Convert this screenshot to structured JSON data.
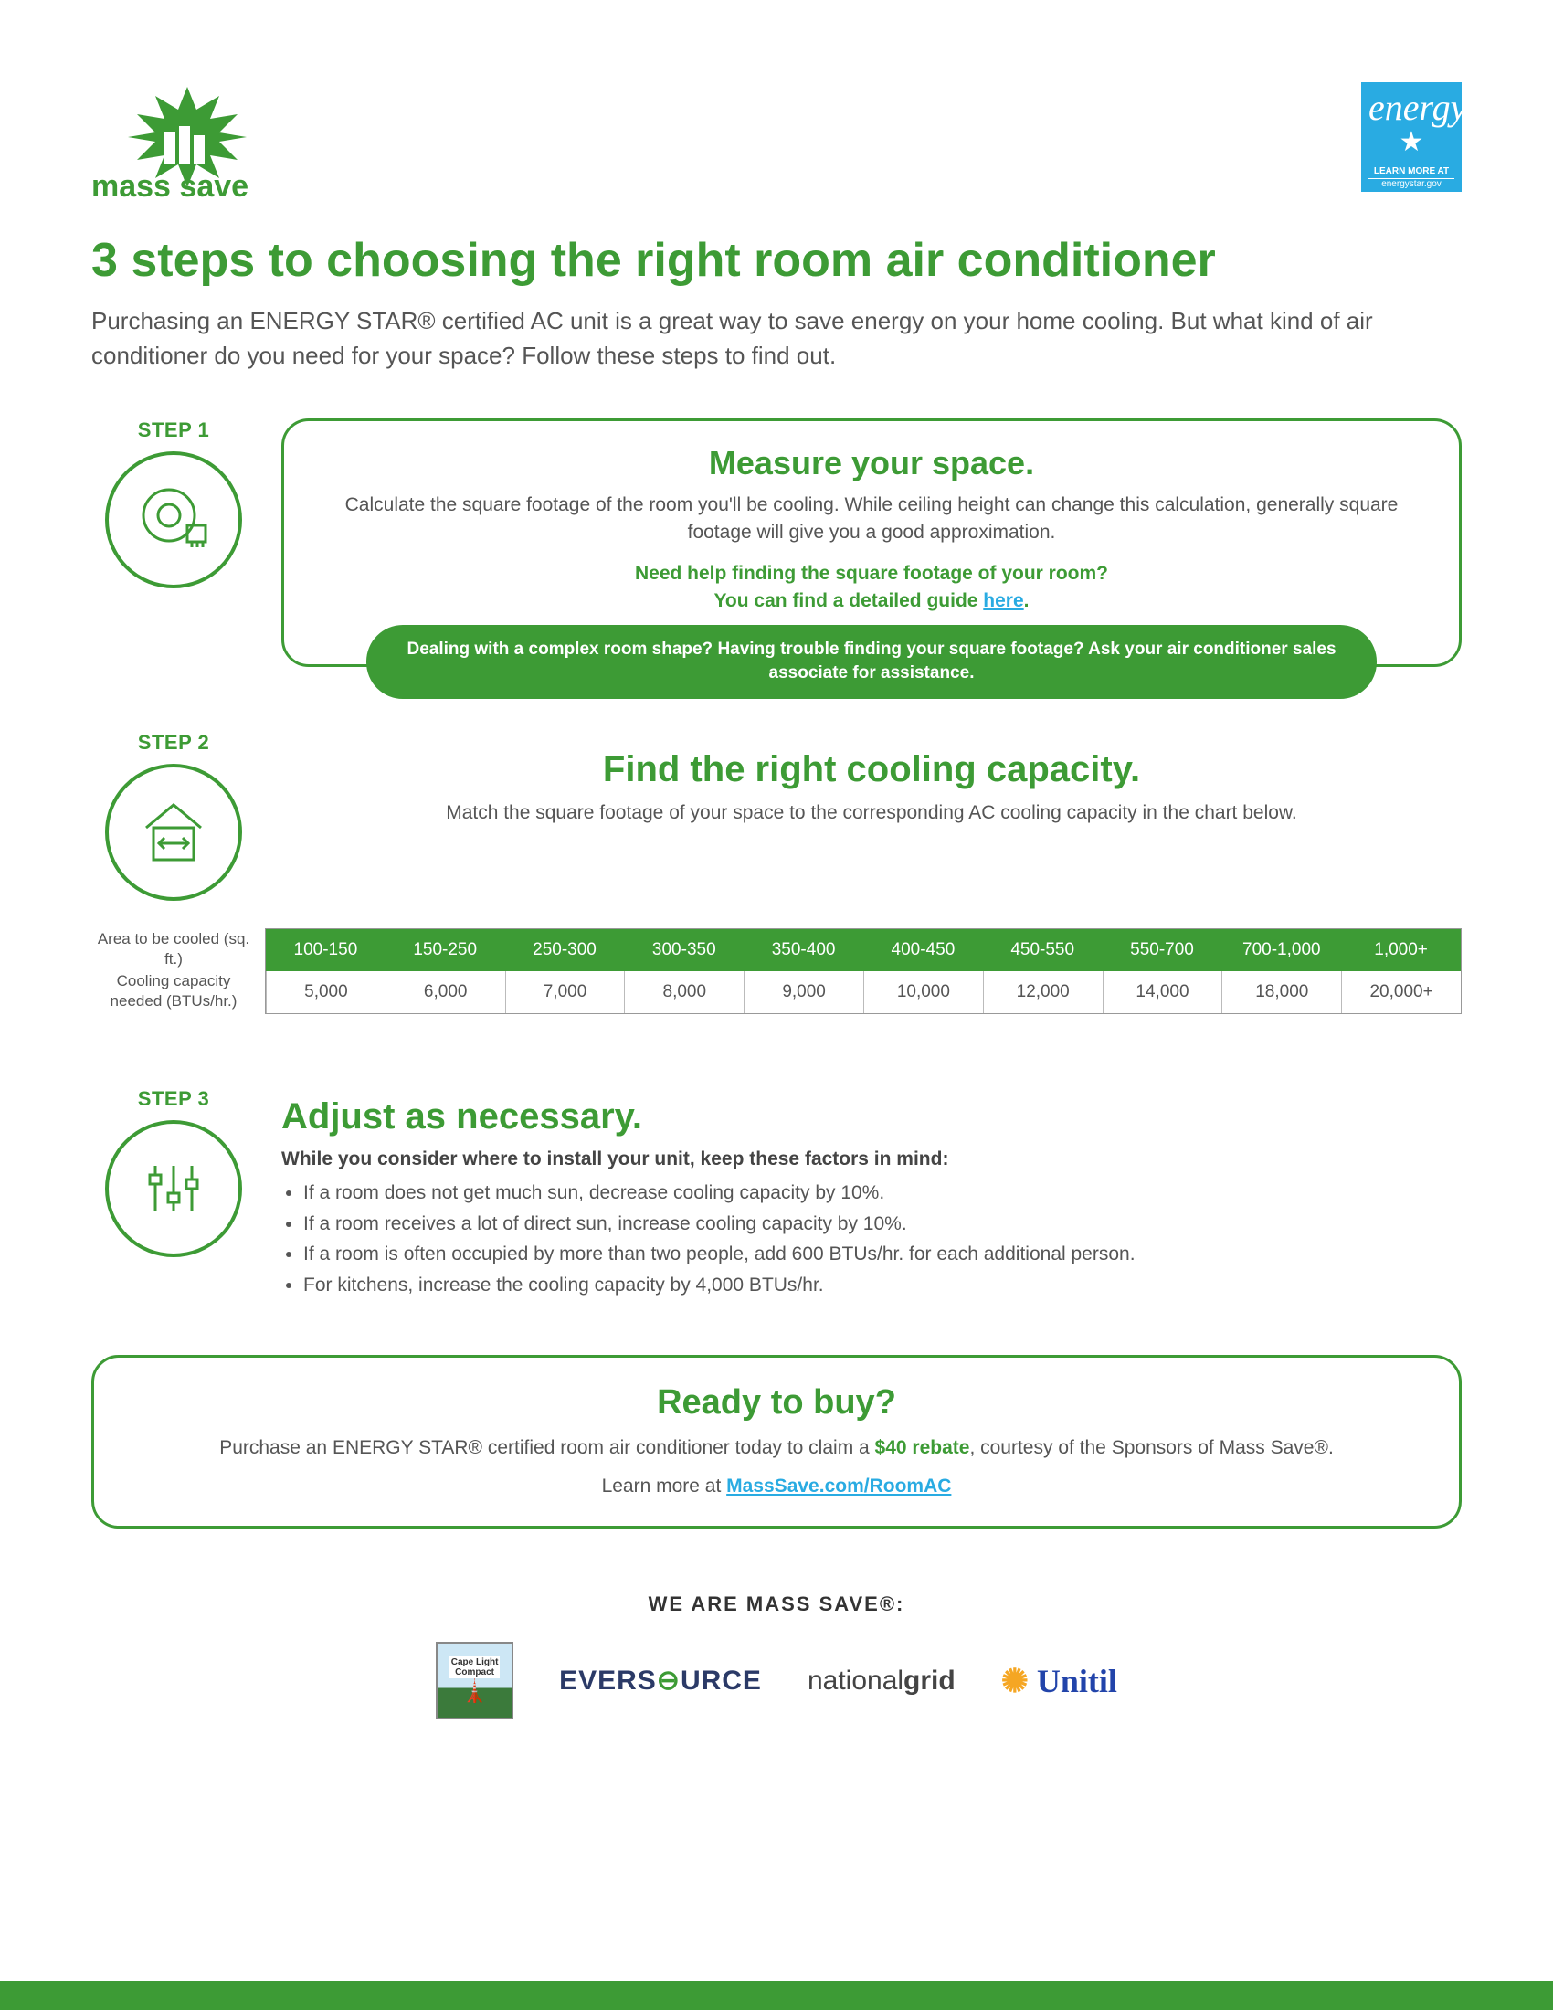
{
  "colors": {
    "accent": "#3d9b35",
    "link": "#29abe2",
    "text": "#555555",
    "bg": "#ffffff"
  },
  "header": {
    "brand": "mass save",
    "energystar_lines": [
      "energy",
      "LEARN MORE AT",
      "energystar.gov"
    ]
  },
  "title": "3 steps to choosing the right room air conditioner",
  "intro": "Purchasing an ENERGY STAR® certified AC unit is a great way to save energy on your home cooling. But what kind of air conditioner do you need for your space? Follow these steps to find out.",
  "step1": {
    "label": "STEP 1",
    "title": "Measure your space.",
    "desc": "Calculate the square footage of the room you'll be cooling. While ceiling height can change this calculation, generally square footage will give you a good approximation.",
    "help1": "Need help finding the square footage of your room?",
    "help2_pre": "You can find a detailed guide ",
    "help2_link": "here",
    "help2_post": ".",
    "pill": "Dealing with a complex room shape? Having trouble finding your square footage? Ask your air conditioner sales associate for assistance."
  },
  "step2": {
    "label": "STEP 2",
    "title": "Find the right cooling capacity.",
    "desc": "Match the square footage of your space to the corresponding AC cooling capacity in the chart below.",
    "row1_label": "Area to be cooled (sq. ft.)",
    "row2_label": "Cooling capacity needed (BTUs/hr.)",
    "table": {
      "type": "table",
      "columns": [
        "100-150",
        "150-250",
        "250-300",
        "300-350",
        "350-400",
        "400-450",
        "450-550",
        "550-700",
        "700-1,000",
        "1,000+"
      ],
      "values": [
        "5,000",
        "6,000",
        "7,000",
        "8,000",
        "9,000",
        "10,000",
        "12,000",
        "14,000",
        "18,000",
        "20,000+"
      ],
      "header_bg": "#3d9b35",
      "header_fg": "#ffffff",
      "cell_fg": "#555555",
      "border_color": "#bbbbbb",
      "fontsize": 19
    }
  },
  "step3": {
    "label": "STEP 3",
    "title": "Adjust as necessary.",
    "sub": "While you consider where to install your unit, keep these factors in mind:",
    "bullets": [
      "If a room does not get much sun, decrease cooling capacity by 10%.",
      "If a room receives a lot of direct sun, increase cooling capacity by 10%.",
      "If a room is often occupied by more than two people, add 600 BTUs/hr. for each additional person.",
      "For kitchens, increase the cooling capacity by 4,000 BTUs/hr."
    ]
  },
  "ready": {
    "title": "Ready to buy?",
    "line1_pre": "Purchase an ENERGY STAR® certified room air conditioner today to claim a ",
    "rebate": "$40 rebate",
    "line1_post": ", courtesy of the Sponsors of Mass Save®.",
    "line2_pre": "Learn more at ",
    "link": "MassSave.com/RoomAC"
  },
  "sponsors": {
    "title": "WE ARE MASS SAVE®:",
    "items": [
      "Cape Light Compact",
      "EVERSOURCE",
      "nationalgrid",
      "Unitil"
    ]
  }
}
